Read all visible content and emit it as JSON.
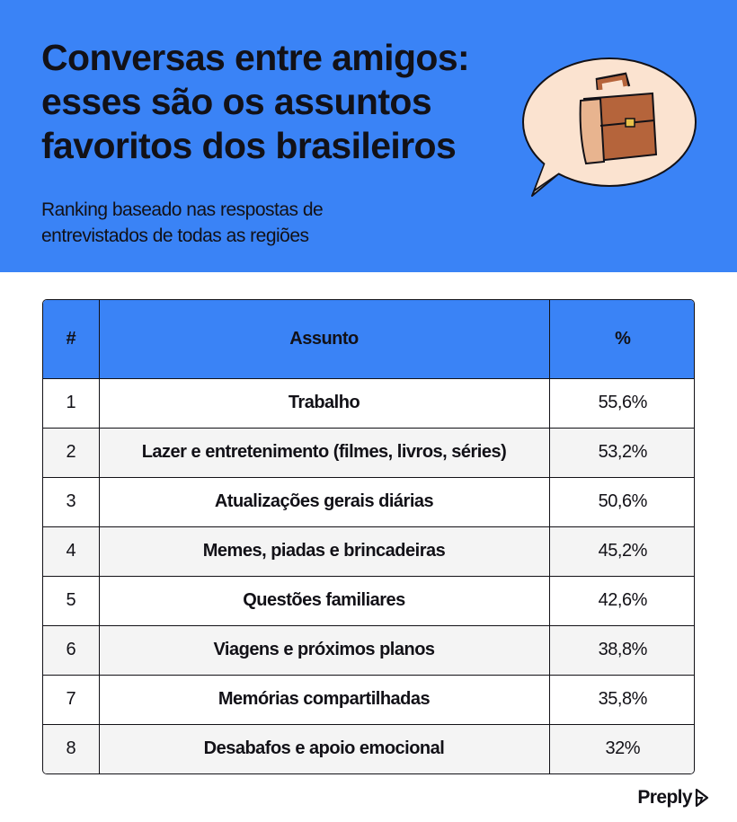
{
  "header": {
    "title_lines": [
      "Conversas entre amigos:",
      "esses são os assuntos",
      "favoritos dos brasileiros"
    ],
    "subtitle_lines": [
      "Ranking baseado nas respostas de",
      "entrevistados de todas as regiões"
    ],
    "illustration": "briefcase-speech-bubble"
  },
  "colors": {
    "accent": "#3a83f6",
    "text": "#121117",
    "row_alt": "#f4f4f4",
    "briefcase": "#b5643b"
  },
  "chart_data": {
    "type": "table",
    "columns": [
      "#",
      "Assunto",
      "%"
    ],
    "rows": [
      {
        "rank": "1",
        "topic": "Trabalho",
        "pct": "55,6%"
      },
      {
        "rank": "2",
        "topic": "Lazer e entretenimento (filmes, livros, séries)",
        "pct": "53,2%"
      },
      {
        "rank": "3",
        "topic": "Atualizações gerais diárias",
        "pct": "50,6%"
      },
      {
        "rank": "4",
        "topic": "Memes, piadas e brincadeiras",
        "pct": "45,2%"
      },
      {
        "rank": "5",
        "topic": "Questões familiares",
        "pct": "42,6%"
      },
      {
        "rank": "6",
        "topic": "Viagens e próximos planos",
        "pct": "38,8%"
      },
      {
        "rank": "7",
        "topic": "Memórias compartilhadas",
        "pct": "35,8%"
      },
      {
        "rank": "8",
        "topic": "Desabafos e apoio emocional",
        "pct": "32%"
      }
    ]
  },
  "footer": {
    "brand": "Preply",
    "brand_icon": "preply-logo-icon"
  }
}
